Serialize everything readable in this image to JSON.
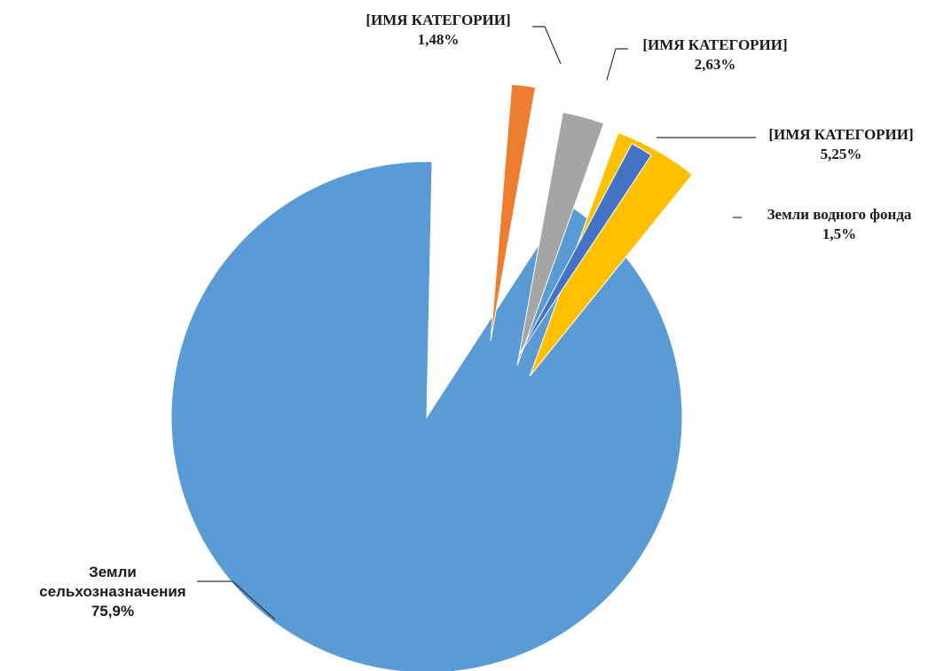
{
  "chart_data": {
    "type": "pie",
    "title": "",
    "series": [
      {
        "values": [
          75.9,
          1.48,
          2.63,
          5.25,
          1.5
        ],
        "categories": [
          "Земли сельхозназначения",
          "[ИМЯ КАТЕГОРИИ]",
          "[ИМЯ КАТЕГОРИИ]",
          "[ИМЯ КАТЕГОРИИ]",
          "Земли водного фонда"
        ],
        "colors": [
          "#5b9bd5",
          "#ed7d31",
          "#a5a5a5",
          "#ffc000",
          "#4472c4"
        ]
      }
    ],
    "labels": [
      {
        "lines": [
          "Земли",
          "сельхозназначения"
        ],
        "value": "75,9%"
      },
      {
        "lines": [
          "[ИМЯ КАТЕГОРИИ]"
        ],
        "value": "1,48%"
      },
      {
        "lines": [
          "[ИМЯ КАТЕГОРИИ]"
        ],
        "value": "2,63%"
      },
      {
        "lines": [
          "[ИМЯ КАТЕГОРИИ]"
        ],
        "value": "5,25%"
      },
      {
        "lines": [
          "Земли водного фонда"
        ],
        "value": "1,5%"
      }
    ],
    "legend": "none",
    "exploded": [
      false,
      true,
      true,
      true,
      true
    ]
  }
}
